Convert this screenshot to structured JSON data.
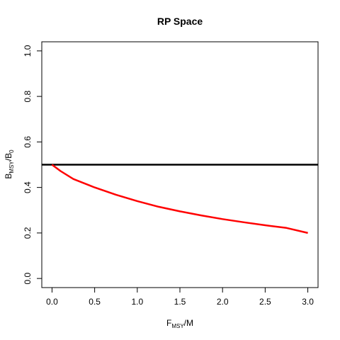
{
  "chart_data": {
    "type": "line",
    "title": "RP Space",
    "xlabel": {
      "main": "F",
      "sub": "MSY",
      "tail": "/M"
    },
    "ylabel": {
      "main": "B",
      "sub": "MSY",
      "mid": "/B",
      "sub2": "0"
    },
    "xlim": [
      -0.12,
      3.12
    ],
    "ylim": [
      -0.04,
      1.04
    ],
    "xticks": [
      0,
      0.5,
      1,
      1.5,
      2,
      2.5,
      3
    ],
    "xtick_labels": [
      "0.0",
      "0.5",
      "1.0",
      "1.5",
      "2.0",
      "2.5",
      "3.0"
    ],
    "yticks": [
      0,
      0.2,
      0.4,
      0.6,
      0.8,
      1
    ],
    "ytick_labels": [
      "0.0",
      "0.2",
      "0.4",
      "0.6",
      "0.8",
      "1.0"
    ],
    "grid": false,
    "series": [
      {
        "color": "#ff0000",
        "x": [
          0.0,
          0.1,
          0.25,
          0.5,
          0.75,
          1.0,
          1.25,
          1.5,
          1.75,
          2.0,
          2.25,
          2.5,
          2.75,
          3.0
        ],
        "y": [
          0.5,
          0.472,
          0.437,
          0.4,
          0.368,
          0.34,
          0.315,
          0.295,
          0.277,
          0.261,
          0.247,
          0.234,
          0.222,
          0.2
        ]
      }
    ],
    "hlines": [
      {
        "y": 0.5,
        "color": "#000000"
      }
    ]
  }
}
